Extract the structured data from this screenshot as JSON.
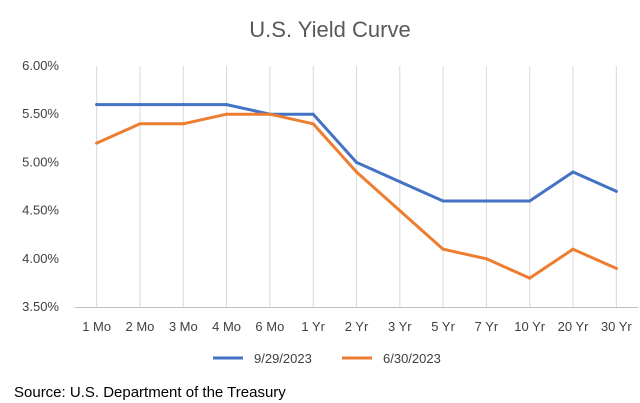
{
  "chart_data": {
    "type": "line",
    "title": "U.S. Yield Curve",
    "categories": [
      "1 Mo",
      "2 Mo",
      "3 Mo",
      "4 Mo",
      "6 Mo",
      "1 Yr",
      "2 Yr",
      "3 Yr",
      "5 Yr",
      "7 Yr",
      "10 Yr",
      "20 Yr",
      "30 Yr"
    ],
    "series": [
      {
        "name": "9/29/2023",
        "color": "#4472c4",
        "values": [
          5.6,
          5.6,
          5.6,
          5.6,
          5.5,
          5.5,
          5.0,
          4.8,
          4.6,
          4.6,
          4.6,
          4.9,
          4.7
        ]
      },
      {
        "name": "6/30/2023",
        "color": "#ed7d31",
        "values": [
          5.2,
          5.4,
          5.4,
          5.5,
          5.5,
          5.4,
          4.9,
          4.5,
          4.1,
          4.0,
          3.8,
          4.1,
          3.9
        ]
      }
    ],
    "y_ticks": [
      "6.00%",
      "5.50%",
      "5.00%",
      "4.50%",
      "4.00%",
      "3.50%"
    ],
    "ylim": [
      3.5,
      6.0
    ],
    "grid": "vertical",
    "legend": "bottom"
  },
  "source": "Source: U.S. Department of the Treasury"
}
